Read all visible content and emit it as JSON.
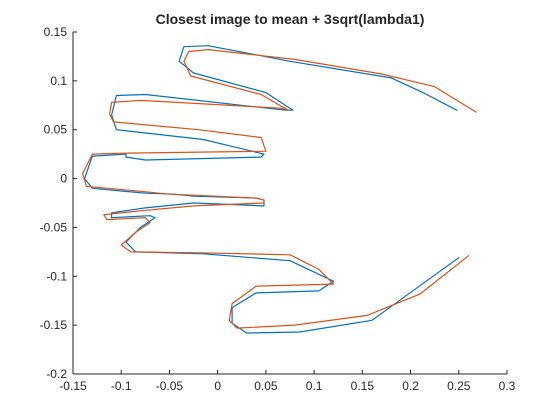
{
  "chart_data": {
    "type": "line",
    "title": "Closest image to mean + 3sqrt(lambda1)",
    "xlabel": "",
    "ylabel": "",
    "xlim": [
      -0.15,
      0.3
    ],
    "ylim": [
      -0.2,
      0.15
    ],
    "xticks": [
      -0.15,
      -0.1,
      -0.05,
      0,
      0.05,
      0.1,
      0.15,
      0.2,
      0.25,
      0.3
    ],
    "xtick_labels": [
      "-0.15",
      "-0.1",
      "-0.05",
      "0",
      "0.05",
      "0.1",
      "0.15",
      "0.2",
      "0.25",
      "0.3"
    ],
    "yticks": [
      -0.2,
      -0.15,
      -0.1,
      -0.05,
      0,
      0.05,
      0.1,
      0.15
    ],
    "ytick_labels": [
      "-0.2",
      "-0.15",
      "-0.1",
      "-0.05",
      "0",
      "0.05",
      "0.1",
      "0.15"
    ],
    "grid": false,
    "series": [
      {
        "color": "#0072BD",
        "x": [
          0.25,
          0.16,
          0.085,
          0.03,
          0.015,
          0.015,
          0.04,
          0.105,
          0.12,
          0.075,
          -0.015,
          -0.085,
          -0.095,
          -0.08,
          -0.065,
          -0.07,
          -0.11,
          -0.11,
          -0.075,
          -0.025,
          0.048,
          0.048,
          0.04,
          -0.025,
          -0.045,
          -0.075,
          -0.13,
          -0.138,
          -0.13,
          -0.095,
          -0.095,
          -0.075,
          0.045,
          0.048,
          -0.015,
          -0.105,
          -0.11,
          -0.105,
          -0.075,
          0.07,
          0.078,
          0.05,
          -0.025,
          -0.04,
          -0.035,
          -0.01,
          0.075,
          0.18,
          0.215,
          0.248
        ],
        "y": [
          -0.081,
          -0.145,
          -0.157,
          -0.158,
          -0.148,
          -0.132,
          -0.117,
          -0.115,
          -0.105,
          -0.084,
          -0.077,
          -0.075,
          -0.065,
          -0.05,
          -0.04,
          -0.038,
          -0.04,
          -0.035,
          -0.03,
          -0.025,
          -0.028,
          -0.022,
          -0.02,
          -0.018,
          -0.016,
          -0.015,
          -0.01,
          0,
          0.023,
          0.025,
          0.022,
          0.019,
          0.022,
          0.025,
          0.04,
          0.05,
          0.065,
          0.085,
          0.086,
          0.07,
          0.07,
          0.088,
          0.108,
          0.12,
          0.135,
          0.136,
          0.12,
          0.103,
          0.087,
          0.07
        ]
      },
      {
        "color": "#D95319",
        "x": [
          0.26,
          0.21,
          0.155,
          0.08,
          0.02,
          0.012,
          0.015,
          0.04,
          0.12,
          0.105,
          0.075,
          -0.02,
          -0.09,
          -0.1,
          -0.085,
          -0.07,
          -0.075,
          -0.115,
          -0.118,
          -0.08,
          -0.025,
          0.048,
          0.048,
          0.04,
          -0.025,
          -0.05,
          -0.08,
          -0.136,
          -0.14,
          -0.13,
          -0.1,
          0.05,
          0.045,
          -0.02,
          -0.108,
          -0.112,
          -0.11,
          -0.08,
          0.065,
          0.073,
          0.045,
          -0.028,
          -0.035,
          -0.03,
          -0.01,
          0.08,
          0.17,
          0.225,
          0.268
        ],
        "y": [
          -0.079,
          -0.118,
          -0.14,
          -0.15,
          -0.153,
          -0.145,
          -0.128,
          -0.11,
          -0.108,
          -0.093,
          -0.078,
          -0.076,
          -0.075,
          -0.068,
          -0.055,
          -0.045,
          -0.04,
          -0.042,
          -0.037,
          -0.033,
          -0.028,
          -0.025,
          -0.022,
          -0.02,
          -0.017,
          -0.016,
          -0.013,
          -0.008,
          0.005,
          0.025,
          0.026,
          0.028,
          0.042,
          0.05,
          0.058,
          0.066,
          0.078,
          0.08,
          0.072,
          0.07,
          0.086,
          0.105,
          0.12,
          0.13,
          0.132,
          0.122,
          0.107,
          0.094,
          0.068
        ]
      }
    ]
  }
}
